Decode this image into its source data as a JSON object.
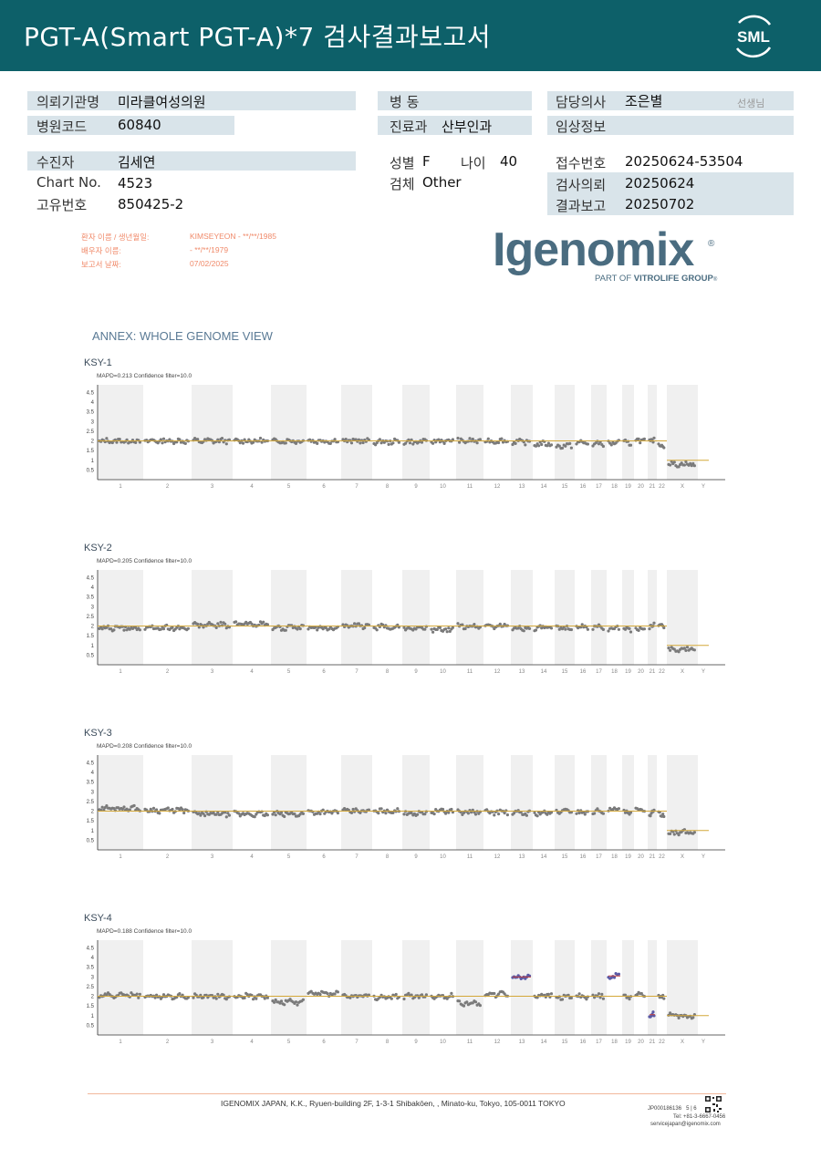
{
  "header": {
    "title": "PGT-A(Smart  PGT-A)*7 검사결과보고서",
    "logo_text": "SML",
    "bg_color": "#0d6069"
  },
  "info": {
    "institution_label": "의뢰기관명",
    "institution_value": "미라클여성의원",
    "hospital_code_label": "병원코드",
    "hospital_code_value": "60840",
    "ward_label": "병   동",
    "ward_value": "",
    "department_label": "진료과",
    "department_value": "산부인과",
    "doctor_label": "담당의사",
    "doctor_value": "조은별",
    "doctor_suffix": "선생님",
    "clinical_label": "임상정보",
    "clinical_value": "",
    "patient_label": "수진자",
    "patient_value": "김세연",
    "chart_label": "Chart No.",
    "chart_value": "4523",
    "id_label": "고유번호",
    "id_value": "850425-2",
    "sex_label": "성별",
    "sex_value": "F",
    "age_label": "나이",
    "age_value": "40",
    "specimen_label": "검체",
    "specimen_value": "Other",
    "receipt_label": "접수번호",
    "receipt_value": "20250624-53504",
    "request_label": "검사의뢰",
    "request_value": "20250624",
    "report_label": "결과보고",
    "report_value": "20250702"
  },
  "patient_lines": {
    "line1_label": "환자 이름 / 생년월일:",
    "line1_value": "KIMSEYEON - **/**/1985",
    "line2_label": "배우자 이름:",
    "line2_value": "- **/**/1979",
    "line3_label": "보고서 날짜:",
    "line3_value": "07/02/2025"
  },
  "brand": {
    "name": "Igenomix",
    "registered": "®",
    "tagline_prefix": "PART OF ",
    "tagline_bold": "VITROLIFE GROUP",
    "tagline_suffix": "®"
  },
  "annex_title": "ANNEX: WHOLE GENOME VIEW",
  "chart_data": [
    {
      "type": "scatter",
      "title": "KSY-1",
      "subtitle": "MAPD=0.213 Confidence filter=10.0",
      "y_ticks": [
        "4.5",
        "4",
        "3.5",
        "3",
        "2.5",
        "2",
        "1.5",
        "1",
        "0.5"
      ],
      "x_labels": [
        "1",
        "2",
        "3",
        "4",
        "5",
        "6",
        "7",
        "8",
        "9",
        "10",
        "11",
        "12",
        "13",
        "14",
        "15",
        "16",
        "17",
        "18",
        "19",
        "20",
        "21",
        "22",
        "X",
        "Y"
      ],
      "reference_levels": {
        "autosomes": 2,
        "sex": 1
      },
      "segments": [
        {
          "chr": "1",
          "value": 2.0
        },
        {
          "chr": "2",
          "value": 2.0
        },
        {
          "chr": "3",
          "value": 2.0
        },
        {
          "chr": "4",
          "value": 2.0
        },
        {
          "chr": "5",
          "value": 2.0
        },
        {
          "chr": "6",
          "value": 2.0
        },
        {
          "chr": "7",
          "value": 2.0
        },
        {
          "chr": "8",
          "value": 1.95
        },
        {
          "chr": "9",
          "value": 1.95
        },
        {
          "chr": "10",
          "value": 2.0
        },
        {
          "chr": "11",
          "value": 2.0
        },
        {
          "chr": "12",
          "value": 2.0
        },
        {
          "chr": "13",
          "value": 1.95
        },
        {
          "chr": "14",
          "value": 1.85
        },
        {
          "chr": "15",
          "value": 1.75
        },
        {
          "chr": "16",
          "value": 1.9
        },
        {
          "chr": "17",
          "value": 1.85
        },
        {
          "chr": "18",
          "value": 1.9
        },
        {
          "chr": "19",
          "value": 1.9
        },
        {
          "chr": "20",
          "value": 2.05
        },
        {
          "chr": "21",
          "value": 2.0
        },
        {
          "chr": "22",
          "value": 1.8
        },
        {
          "chr": "X",
          "value": 0.8
        }
      ]
    },
    {
      "type": "scatter",
      "title": "KSY-2",
      "subtitle": "MAPD=0.205 Confidence filter=10.0",
      "y_ticks": [
        "4.5",
        "4",
        "3.5",
        "3",
        "2.5",
        "2",
        "1.5",
        "1",
        "0.5"
      ],
      "x_labels": [
        "1",
        "2",
        "3",
        "4",
        "5",
        "6",
        "7",
        "8",
        "9",
        "10",
        "11",
        "12",
        "13",
        "14",
        "15",
        "16",
        "17",
        "18",
        "19",
        "20",
        "21",
        "22",
        "X",
        "Y"
      ],
      "reference_levels": {
        "autosomes": 2,
        "sex": 1
      },
      "segments": [
        {
          "chr": "1",
          "value": 1.9
        },
        {
          "chr": "2",
          "value": 1.9
        },
        {
          "chr": "3",
          "value": 2.05
        },
        {
          "chr": "4",
          "value": 2.1
        },
        {
          "chr": "5",
          "value": 1.9
        },
        {
          "chr": "6",
          "value": 1.9
        },
        {
          "chr": "7",
          "value": 2.0
        },
        {
          "chr": "8",
          "value": 1.95
        },
        {
          "chr": "9",
          "value": 1.9
        },
        {
          "chr": "10",
          "value": 1.8
        },
        {
          "chr": "11",
          "value": 2.0
        },
        {
          "chr": "12",
          "value": 2.0
        },
        {
          "chr": "13",
          "value": 1.9
        },
        {
          "chr": "14",
          "value": 1.9
        },
        {
          "chr": "15",
          "value": 1.9
        },
        {
          "chr": "16",
          "value": 1.95
        },
        {
          "chr": "17",
          "value": 1.95
        },
        {
          "chr": "18",
          "value": 1.85
        },
        {
          "chr": "19",
          "value": 1.85
        },
        {
          "chr": "20",
          "value": 1.85
        },
        {
          "chr": "21",
          "value": 2.0
        },
        {
          "chr": "22",
          "value": 2.05
        },
        {
          "chr": "X",
          "value": 0.8
        }
      ]
    },
    {
      "type": "scatter",
      "title": "KSY-3",
      "subtitle": "MAPD=0.208 Confidence filter=10.0",
      "y_ticks": [
        "4.5",
        "4",
        "3.5",
        "3",
        "2.5",
        "2",
        "1.5",
        "1",
        "0.5"
      ],
      "x_labels": [
        "1",
        "2",
        "3",
        "4",
        "5",
        "6",
        "7",
        "8",
        "9",
        "10",
        "11",
        "12",
        "13",
        "14",
        "15",
        "16",
        "17",
        "18",
        "19",
        "20",
        "21",
        "22",
        "X",
        "Y"
      ],
      "reference_levels": {
        "autosomes": 2,
        "sex": 1
      },
      "segments": [
        {
          "chr": "1",
          "value": 2.15
        },
        {
          "chr": "2",
          "value": 2.05
        },
        {
          "chr": "3",
          "value": 1.85
        },
        {
          "chr": "4",
          "value": 1.85
        },
        {
          "chr": "5",
          "value": 1.85
        },
        {
          "chr": "6",
          "value": 1.95
        },
        {
          "chr": "7",
          "value": 2.0
        },
        {
          "chr": "8",
          "value": 2.0
        },
        {
          "chr": "9",
          "value": 1.9
        },
        {
          "chr": "10",
          "value": 2.0
        },
        {
          "chr": "11",
          "value": 1.95
        },
        {
          "chr": "12",
          "value": 1.95
        },
        {
          "chr": "13",
          "value": 1.9
        },
        {
          "chr": "14",
          "value": 1.9
        },
        {
          "chr": "15",
          "value": 2.0
        },
        {
          "chr": "16",
          "value": 1.95
        },
        {
          "chr": "17",
          "value": 2.0
        },
        {
          "chr": "18",
          "value": 2.1
        },
        {
          "chr": "19",
          "value": 1.9
        },
        {
          "chr": "20",
          "value": 2.05
        },
        {
          "chr": "21",
          "value": 1.9
        },
        {
          "chr": "22",
          "value": 1.85
        },
        {
          "chr": "X",
          "value": 0.9
        }
      ]
    },
    {
      "type": "scatter",
      "title": "KSY-4",
      "subtitle": "MAPD=0.188 Confidence filter=10.0",
      "y_ticks": [
        "4.5",
        "4",
        "3.5",
        "3",
        "2.5",
        "2",
        "1.5",
        "1",
        "0.5"
      ],
      "x_labels": [
        "1",
        "2",
        "3",
        "4",
        "5",
        "6",
        "7",
        "8",
        "9",
        "10",
        "11",
        "12",
        "13",
        "14",
        "15",
        "16",
        "17",
        "18",
        "19",
        "20",
        "21",
        "22",
        "X",
        "Y"
      ],
      "reference_levels": {
        "autosomes": 2,
        "sex": 1
      },
      "segments": [
        {
          "chr": "1",
          "value": 2.05
        },
        {
          "chr": "2",
          "value": 2.0
        },
        {
          "chr": "3",
          "value": 2.0
        },
        {
          "chr": "4",
          "value": 2.0
        },
        {
          "chr": "5",
          "value": 1.7
        },
        {
          "chr": "6",
          "value": 2.15
        },
        {
          "chr": "7",
          "value": 2.0
        },
        {
          "chr": "8",
          "value": 1.95
        },
        {
          "chr": "9",
          "value": 2.0
        },
        {
          "chr": "10",
          "value": 2.0
        },
        {
          "chr": "11",
          "value": 1.65
        },
        {
          "chr": "12",
          "value": 2.1
        },
        {
          "chr": "13",
          "value": 3.0
        },
        {
          "chr": "14",
          "value": 2.05
        },
        {
          "chr": "15",
          "value": 1.95
        },
        {
          "chr": "16",
          "value": 2.0
        },
        {
          "chr": "17",
          "value": 2.0
        },
        {
          "chr": "18",
          "value": 3.05
        },
        {
          "chr": "19",
          "value": 2.0
        },
        {
          "chr": "20",
          "value": 2.1
        },
        {
          "chr": "21",
          "value": 1.05
        },
        {
          "chr": "22",
          "value": 2.0
        },
        {
          "chr": "X",
          "value": 1.0
        }
      ]
    }
  ],
  "footer": {
    "address": "IGENOMIX JAPAN, K.K., Ryuen-building 2F, 1-3-1 Shibakōen, , Minato-ku, Tokyo, 105-0011 TOKYO",
    "code": "JP000186136",
    "page": "5 | 6",
    "tel": "Tel: +81-3-6667-0456",
    "email": "servicejapan@igenomix.com"
  }
}
